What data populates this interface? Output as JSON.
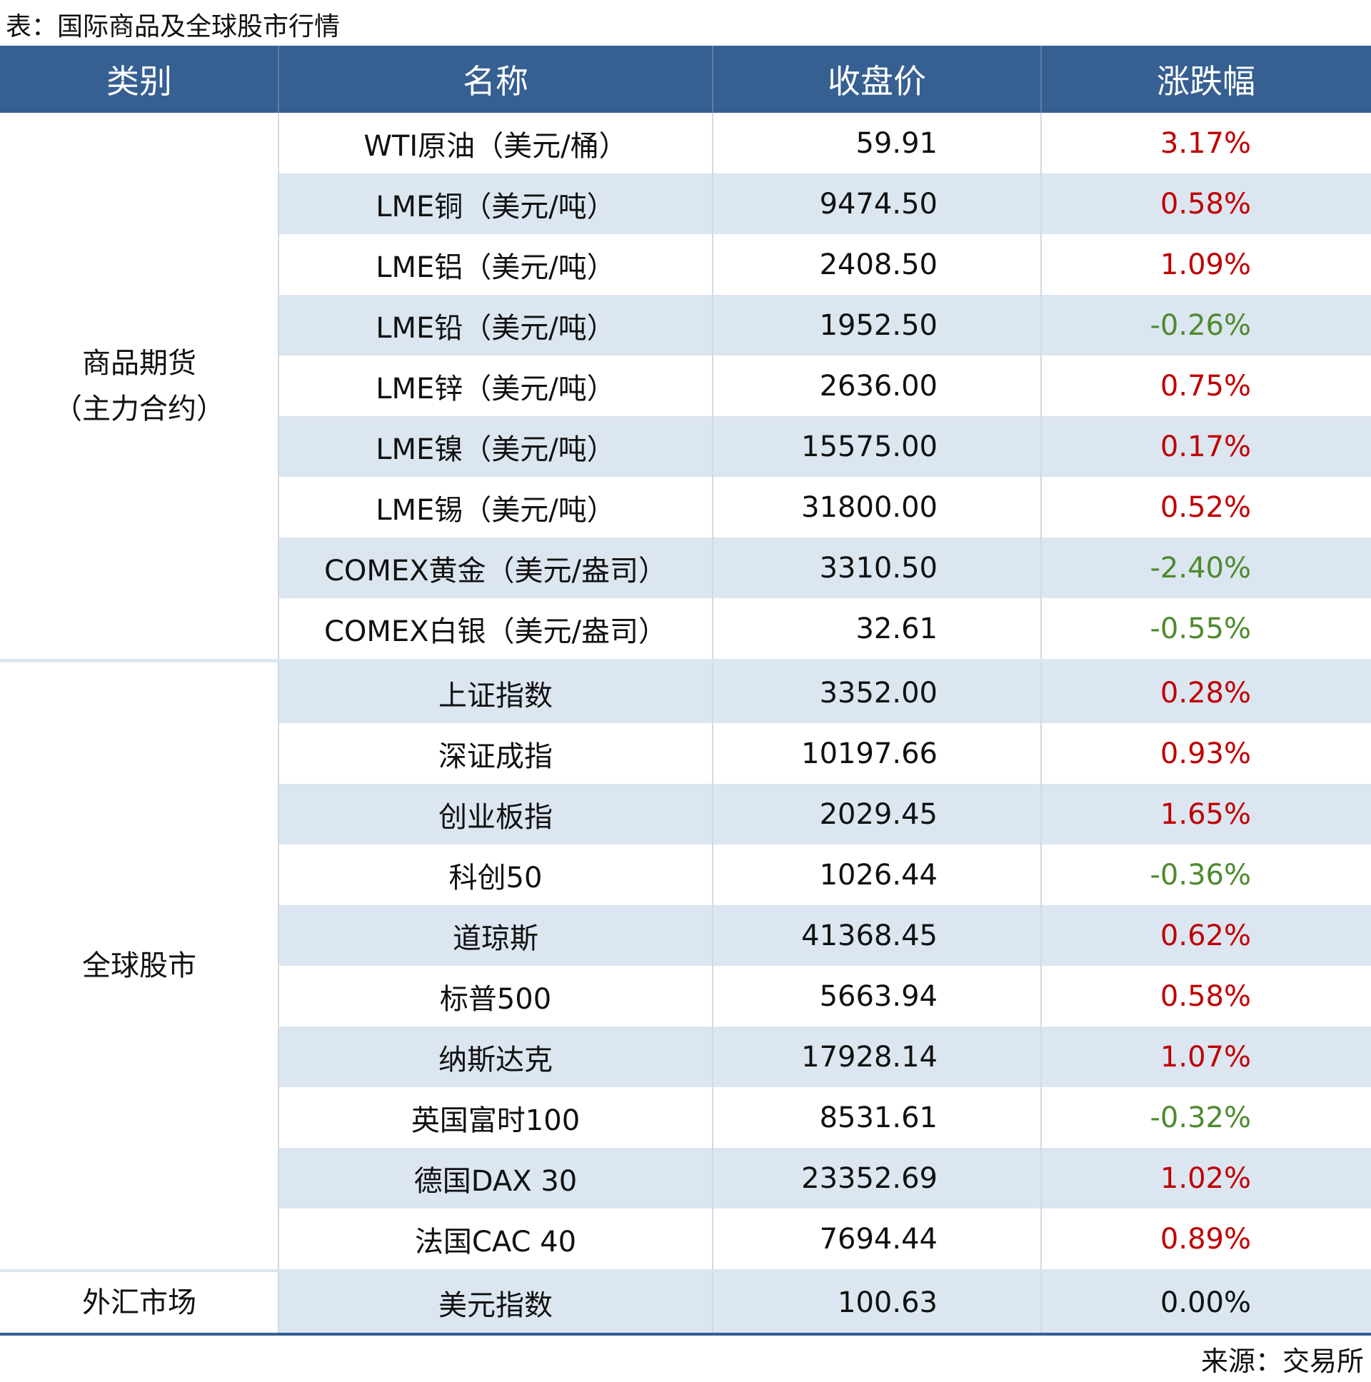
{
  "header": {
    "title": "表：国际商品及全球股市行情"
  },
  "table": {
    "columns": [
      "类别",
      "名称",
      "收盘价",
      "涨跌幅"
    ],
    "groups": [
      {
        "category": [
          "商品期货",
          "（主力合约）"
        ],
        "rows": [
          [
            "WTI原油（美元/桶）",
            "59.91",
            "3.17%"
          ],
          [
            "LME铜（美元/吨）",
            "9474.50",
            "0.58%"
          ],
          [
            "LME铝（美元/吨）",
            "2408.50",
            "1.09%"
          ],
          [
            "LME铅（美元/吨）",
            "1952.50",
            "-0.26%"
          ],
          [
            "LME锌（美元/吨）",
            "2636.00",
            "0.75%"
          ],
          [
            "LME镍（美元/吨）",
            "15575.00",
            "0.17%"
          ],
          [
            "LME锡（美元/吨）",
            "31800.00",
            "0.52%"
          ],
          [
            "COMEX黄金（美元/盎司）",
            "3310.50",
            "-2.40%"
          ],
          [
            "COMEX白银（美元/盎司）",
            "32.61",
            "-0.55%"
          ]
        ]
      },
      {
        "category": [
          "全球股市"
        ],
        "rows": [
          [
            "上证指数",
            "3352.00",
            "0.28%"
          ],
          [
            "深证成指",
            "10197.66",
            "0.93%"
          ],
          [
            "创业板指",
            "2029.45",
            "1.65%"
          ],
          [
            "科创50",
            "1026.44",
            "-0.36%"
          ],
          [
            "道琼斯",
            "41368.45",
            "0.62%"
          ],
          [
            "标普500",
            "5663.94",
            "0.58%"
          ],
          [
            "纳斯达克",
            "17928.14",
            "1.07%"
          ],
          [
            "英国富时100",
            "8531.61",
            "-0.32%"
          ],
          [
            "德国DAX 30",
            "23352.69",
            "1.02%"
          ],
          [
            "法国CAC 40",
            "7694.44",
            "0.89%"
          ]
        ]
      },
      {
        "category": [
          "外汇市场"
        ],
        "rows": [
          [
            "美元指数",
            "100.63",
            "0.00%"
          ]
        ]
      }
    ]
  },
  "source": "来源：交易所"
}
